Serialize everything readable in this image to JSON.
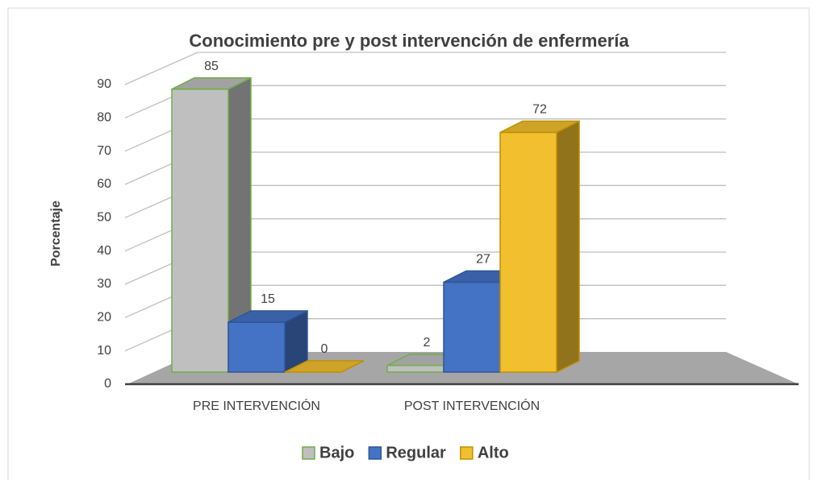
{
  "chart_data": {
    "type": "bar3d",
    "title": "Conocimiento pre y post intervención de enfermería",
    "ylabel": "Porcentaje",
    "categories": [
      "PRE INTERVENCIÓN",
      "POST INTERVENCIÓN"
    ],
    "series": [
      {
        "name": "Bajo",
        "color": "#bfbfbf",
        "edgecolor": "#70ad47",
        "values": [
          85,
          2
        ]
      },
      {
        "name": "Regular",
        "color": "#4472c4",
        "edgecolor": "#2f5597",
        "values": [
          15,
          27
        ]
      },
      {
        "name": "Alto",
        "color": "#f2c02e",
        "edgecolor": "#bf9000",
        "values": [
          0,
          72
        ]
      }
    ],
    "ylim": [
      0,
      90
    ],
    "yticks": [
      0,
      10,
      20,
      30,
      40,
      50,
      60,
      70,
      80,
      90
    ],
    "grid": true,
    "legend": "bottom"
  }
}
